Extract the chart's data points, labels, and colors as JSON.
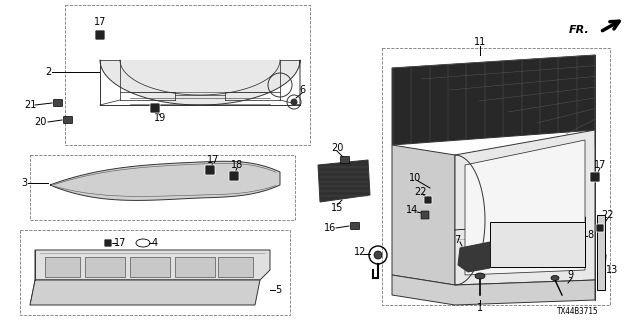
{
  "bg_color": "#ffffff",
  "diagram_id": "TX44B3715",
  "line_color": "#333333",
  "label_fs": 7,
  "small_fs": 6
}
